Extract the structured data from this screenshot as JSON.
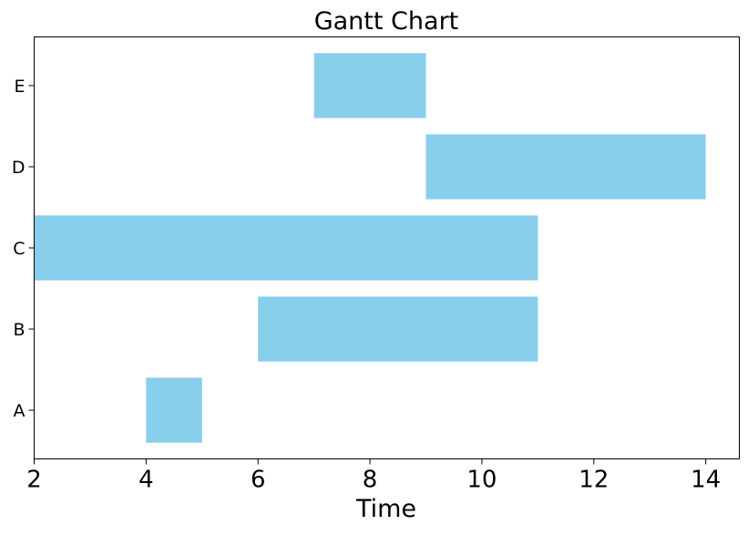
{
  "chart_data": {
    "type": "gantt",
    "title": "Gantt Chart",
    "xlabel": "Time",
    "ylabel": "",
    "xlim": [
      2,
      14.6
    ],
    "xticks": [
      2,
      4,
      6,
      8,
      10,
      12,
      14
    ],
    "categories": [
      "A",
      "B",
      "C",
      "D",
      "E"
    ],
    "tasks": [
      {
        "task": "A",
        "start": 4,
        "end": 5
      },
      {
        "task": "B",
        "start": 6,
        "end": 11
      },
      {
        "task": "C",
        "start": 2,
        "end": 11
      },
      {
        "task": "D",
        "start": 9,
        "end": 14
      },
      {
        "task": "E",
        "start": 7,
        "end": 9
      }
    ],
    "bar_color": "#87CEEB",
    "grid": false,
    "legend": "none"
  }
}
